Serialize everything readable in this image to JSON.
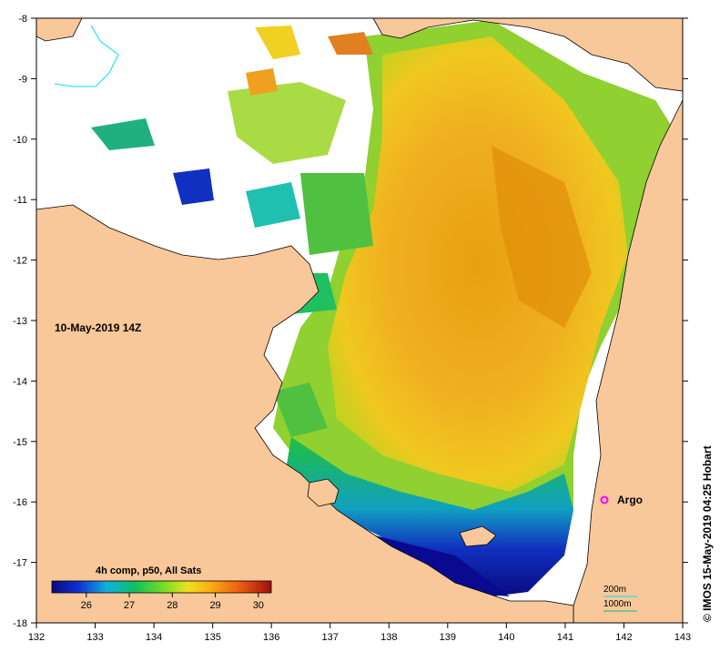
{
  "map": {
    "date_label": "10-May-2019 14Z",
    "composite_label": "4h comp, p50, All Sats",
    "argo_label": "Argo",
    "credit": "© IMOS 15-May-2019 04:25 Hobart",
    "isobath_200": "200m",
    "isobath_1000": "1000m",
    "lon_ticks": [
      "132",
      "133",
      "134",
      "135",
      "136",
      "137",
      "138",
      "139",
      "140",
      "141",
      "142",
      "143"
    ],
    "lat_ticks": [
      "-8",
      "-9",
      "-10",
      "-11",
      "-12",
      "-13",
      "-14",
      "-15",
      "-16",
      "-17",
      "-18"
    ],
    "colorbar_ticks": [
      "26",
      "27",
      "28",
      "29",
      "30"
    ],
    "colorbar_range": [
      25.2,
      30.3
    ],
    "colors": {
      "land": "#f8c89a",
      "no_data": "#ffffff",
      "argo_marker": "#ff00ff",
      "isobath_200": "#00e0ff",
      "isobath_1000": "#00c080"
    }
  }
}
